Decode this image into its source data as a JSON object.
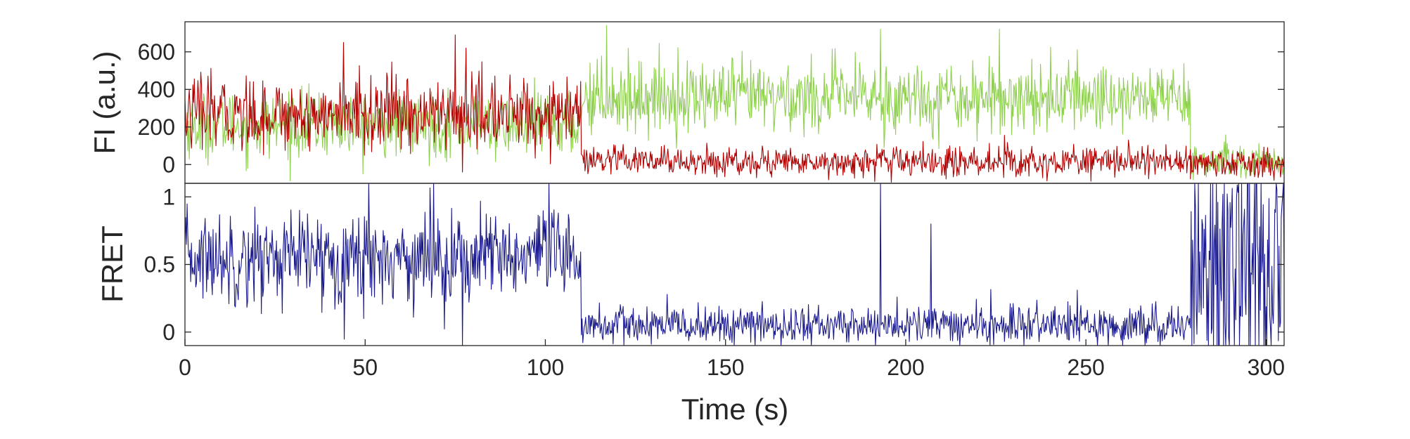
{
  "chart_data": [
    {
      "type": "line",
      "ylabel": "FI (a.u.)",
      "xlim": [
        0,
        305
      ],
      "ylim": [
        -100,
        760
      ],
      "yticks": [
        0,
        200,
        400,
        600
      ],
      "show_x_tick_labels": false,
      "grid": false,
      "series": [
        {
          "color": "#8ecf4e",
          "segments": [
            {
              "x_start": 0,
              "x_end": 110,
              "mean": 210,
              "noise": 85
            },
            {
              "x_start": 110,
              "x_end": 279,
              "mean": 360,
              "noise": 95
            },
            {
              "x_start": 279,
              "x_end": 305,
              "mean": 15,
              "noise": 45
            }
          ],
          "spikes": [
            {
              "x": 117,
              "y": 740
            },
            {
              "x": 193,
              "y": 720
            },
            {
              "x": 226,
              "y": 720
            },
            {
              "x": 194,
              "y": 90
            }
          ]
        },
        {
          "color": "#b00000",
          "segments": [
            {
              "x_start": 0,
              "x_end": 110,
              "mean": 270,
              "noise": 95
            },
            {
              "x_start": 110,
              "x_end": 279,
              "mean": 15,
              "noise": 40
            },
            {
              "x_start": 279,
              "x_end": 305,
              "mean": 5,
              "noise": 40
            }
          ],
          "spikes": [
            {
              "x": 44,
              "y": 650
            },
            {
              "x": 75,
              "y": 690
            },
            {
              "x": 77,
              "y": -40
            },
            {
              "x": 78,
              "y": 620
            }
          ]
        }
      ]
    },
    {
      "type": "line",
      "ylabel": "FRET",
      "xlabel": "Time (s)",
      "xlim": [
        0,
        305
      ],
      "ylim": [
        -0.1,
        1.1
      ],
      "xticks": [
        0,
        50,
        100,
        150,
        200,
        250,
        300
      ],
      "yticks": [
        0,
        0.5,
        1
      ],
      "grid": false,
      "series": [
        {
          "color": "#1a1a8c",
          "segments": [
            {
              "x_start": 0,
              "x_end": 110,
              "mean": 0.55,
              "noise": 0.17
            },
            {
              "x_start": 110,
              "x_end": 279,
              "mean": 0.05,
              "noise": 0.07
            },
            {
              "x_start": 279,
              "x_end": 305,
              "mean": 0.5,
              "noise": 0.6
            }
          ],
          "spikes": [
            {
              "x": 51,
              "y": 1.1
            },
            {
              "x": 69,
              "y": 1.1
            },
            {
              "x": 77,
              "y": -0.1
            },
            {
              "x": 101,
              "y": 1.1
            },
            {
              "x": 193,
              "y": 1.1
            },
            {
              "x": 207,
              "y": 0.8
            }
          ]
        }
      ]
    }
  ]
}
